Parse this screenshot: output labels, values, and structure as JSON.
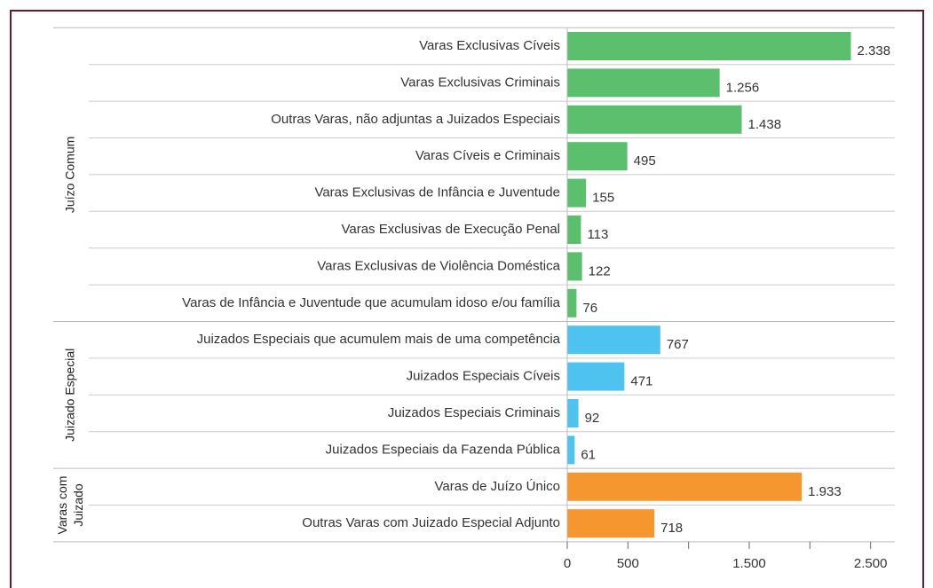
{
  "chart_data": {
    "type": "grouped-hbar",
    "series": [
      {
        "name": "Juízo Comum",
        "color": "#5bbf6e",
        "categories": [
          "Varas Exclusivas Cíveis",
          "Varas Exclusivas Criminais",
          "Outras Varas, não adjuntas a Juizados Especiais",
          "Varas Cíveis e Criminais",
          "Varas Exclusivas de Infância e Juventude",
          "Varas Exclusivas de Execução Penal",
          "Varas Exclusivas de Violência Doméstica",
          "Varas de Infância e Juventude que acumulam idoso e/ou família"
        ],
        "values": [
          2338,
          1256,
          1438,
          495,
          155,
          113,
          122,
          76
        ],
        "value_labels": [
          "2.338",
          "1.256",
          "1.438",
          "495",
          "155",
          "113",
          "122",
          "76"
        ]
      },
      {
        "name": "Juizado Especial",
        "color": "#4fc3f0",
        "categories": [
          "Juizados Especiais que acumulem mais de uma competência",
          "Juizados Especiais Cíveis",
          "Juizados Especiais Criminais",
          "Juizados Especiais da Fazenda Pública"
        ],
        "values": [
          767,
          471,
          92,
          61
        ],
        "value_labels": [
          "767",
          "471",
          "92",
          "61"
        ]
      },
      {
        "name": "Varas com\nJuizado",
        "color": "#f5962e",
        "categories": [
          "Varas de Juízo Único",
          "Outras Varas com Juizado Especial Adjunto"
        ],
        "values": [
          1933,
          718
        ],
        "value_labels": [
          "1.933",
          "718"
        ]
      }
    ],
    "xlim": [
      0,
      2700
    ],
    "xticks": [
      0,
      500,
      {
        "value": 1000,
        "label": null
      },
      {
        "value": 1500,
        "label": "1.500"
      },
      {
        "value": 2000,
        "label": null
      },
      {
        "value": 2500,
        "label": "2.500"
      }
    ]
  }
}
